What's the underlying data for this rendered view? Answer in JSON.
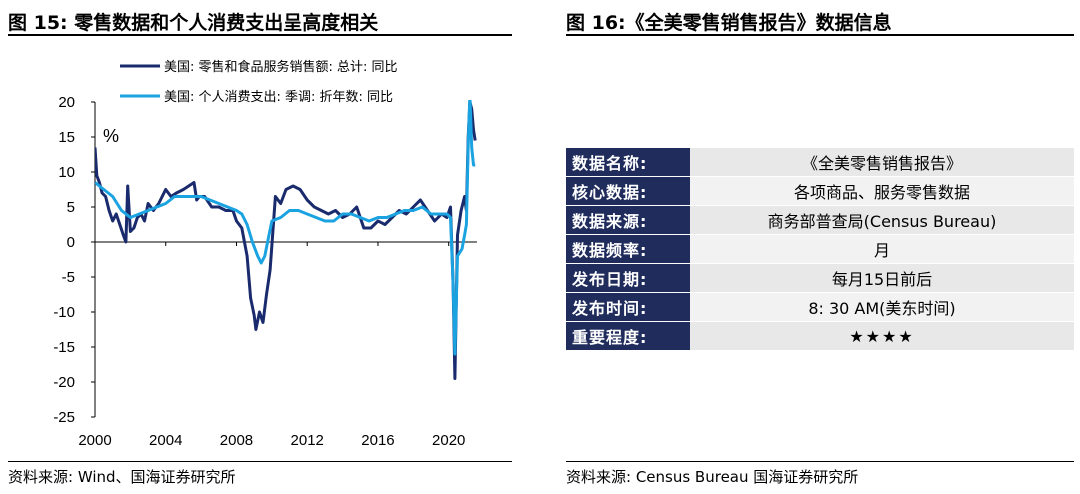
{
  "left_panel": {
    "title": "图 15:  零售数据和个人消费支出呈高度相关",
    "source": "资料来源:  Wind、国海证券研究所"
  },
  "right_panel": {
    "title": "图 16:《全美零售销售报告》数据信息",
    "source": "资料来源:  Census Bureau 国海证券研究所",
    "rows": [
      {
        "key": "数据名称:",
        "value": "《全美零售销售报告》"
      },
      {
        "key": "核心数据:",
        "value": "各项商品、服务零售数据"
      },
      {
        "key": "数据来源:",
        "value": "商务部普查局(Census Bureau)"
      },
      {
        "key": "数据频率:",
        "value": "月"
      },
      {
        "key": "发布日期:",
        "value": "每月15日前后"
      },
      {
        "key": "发布时间:",
        "value": "8: 30 AM(美东时间)"
      },
      {
        "key": "重要程度:",
        "value": "★★★★"
      }
    ]
  },
  "chart_data": {
    "type": "line",
    "unit_label": "%",
    "xlim": [
      2000,
      2021.6
    ],
    "ylim": [
      -25,
      20
    ],
    "x_ticks": [
      2000,
      2004,
      2008,
      2012,
      2016,
      2020
    ],
    "y_ticks": [
      20,
      15,
      10,
      5,
      0,
      -5,
      -10,
      -15,
      -20,
      -25
    ],
    "grid": false,
    "legend_position": "top",
    "colors": {
      "retail": "#1a2b6d",
      "pce": "#1aa3e0"
    },
    "series": [
      {
        "name": "美国: 零售和食品服务销售额: 总计: 同比",
        "x": [
          2000.0,
          2000.1,
          2000.25,
          2000.4,
          2000.6,
          2000.8,
          2001.0,
          2001.2,
          2001.4,
          2001.6,
          2001.75,
          2001.85,
          2002.0,
          2002.2,
          2002.4,
          2002.6,
          2002.8,
          2003.0,
          2003.3,
          2003.6,
          2004.0,
          2004.3,
          2004.6,
          2005.0,
          2005.3,
          2005.6,
          2005.75,
          2005.9,
          2006.2,
          2006.6,
          2007.0,
          2007.4,
          2007.8,
          2008.0,
          2008.3,
          2008.6,
          2008.8,
          2009.0,
          2009.1,
          2009.3,
          2009.5,
          2009.7,
          2009.9,
          2010.2,
          2010.5,
          2010.8,
          2011.2,
          2011.6,
          2012.0,
          2012.4,
          2012.8,
          2013.2,
          2013.6,
          2014.0,
          2014.4,
          2014.8,
          2015.2,
          2015.6,
          2016.0,
          2016.4,
          2016.8,
          2017.2,
          2017.6,
          2018.0,
          2018.4,
          2018.8,
          2019.2,
          2019.6,
          2019.9,
          2020.1,
          2020.25,
          2020.35,
          2020.5,
          2020.7,
          2020.9,
          2021.0,
          2021.1,
          2021.2,
          2021.3,
          2021.4,
          2021.5
        ],
        "values": [
          13.5,
          9.5,
          8.5,
          7.0,
          6.5,
          4.5,
          3.0,
          4.0,
          2.5,
          1.0,
          0.0,
          8.0,
          1.5,
          2.0,
          3.5,
          4.0,
          3.0,
          5.5,
          4.5,
          5.5,
          7.5,
          6.5,
          7.0,
          7.5,
          8.0,
          8.5,
          6.0,
          6.5,
          6.5,
          5.0,
          5.0,
          4.5,
          4.5,
          3.0,
          2.0,
          -2.0,
          -8.0,
          -10.5,
          -12.5,
          -10.0,
          -11.5,
          -7.5,
          -4.0,
          6.5,
          5.5,
          7.5,
          8.0,
          7.5,
          6.0,
          5.0,
          4.5,
          4.0,
          4.5,
          3.5,
          4.0,
          5.0,
          2.0,
          2.0,
          3.0,
          2.5,
          3.5,
          4.5,
          4.0,
          5.0,
          6.0,
          4.5,
          3.0,
          4.0,
          3.5,
          5.0,
          -6.0,
          -19.5,
          1.0,
          4.5,
          6.5,
          4.5,
          15.0,
          20.0,
          19.0,
          16.0,
          14.5
        ]
      },
      {
        "name": "美国: 个人消费支出: 季调: 折年数: 同比",
        "x": [
          2000.0,
          2000.5,
          2001.0,
          2001.5,
          2002.0,
          2002.5,
          2003.0,
          2003.5,
          2004.0,
          2004.5,
          2005.0,
          2005.5,
          2006.0,
          2006.5,
          2007.0,
          2007.5,
          2008.0,
          2008.3,
          2008.6,
          2008.9,
          2009.2,
          2009.4,
          2009.6,
          2009.8,
          2010.0,
          2010.5,
          2011.0,
          2011.5,
          2012.0,
          2012.5,
          2013.0,
          2013.5,
          2014.0,
          2014.5,
          2015.0,
          2015.5,
          2016.0,
          2016.5,
          2017.0,
          2017.5,
          2018.0,
          2018.5,
          2019.0,
          2019.5,
          2019.9,
          2020.1,
          2020.25,
          2020.35,
          2020.5,
          2020.75,
          2020.9,
          2021.0,
          2021.1,
          2021.2,
          2021.3,
          2021.4,
          2021.5
        ],
        "values": [
          8.5,
          7.5,
          6.5,
          4.5,
          3.5,
          4.0,
          4.5,
          5.0,
          5.5,
          6.5,
          6.5,
          6.5,
          6.5,
          6.0,
          5.5,
          5.0,
          4.5,
          4.0,
          2.5,
          0.0,
          -2.0,
          -3.0,
          -2.0,
          0.5,
          3.0,
          3.5,
          4.5,
          4.5,
          4.0,
          3.5,
          3.0,
          3.0,
          4.0,
          4.0,
          3.5,
          3.0,
          3.5,
          3.5,
          4.0,
          4.5,
          4.5,
          5.0,
          4.0,
          4.0,
          4.0,
          3.5,
          -6.0,
          -16.0,
          -2.0,
          -1.0,
          1.0,
          2.5,
          14.0,
          21.0,
          13.5,
          11.0,
          11.0
        ]
      }
    ]
  }
}
